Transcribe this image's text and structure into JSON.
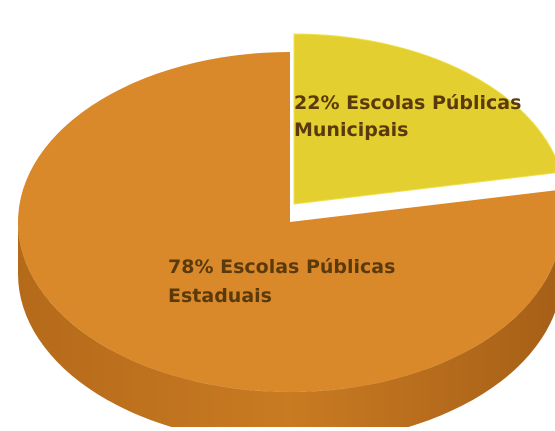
{
  "chart_data": {
    "type": "pie",
    "slices": [
      {
        "name": "Escolas Públicas Municipais",
        "value": 22,
        "label_line1": "22% Escolas Públicas",
        "label_line2": "Municipais",
        "color": "#e3cf2f",
        "side_color": "#b9a623"
      },
      {
        "name": "Escolas Públicas Estaduais",
        "value": 78,
        "label_line1": "78% Escolas Públicas",
        "label_line2": "Estaduais",
        "color": "#d9892a",
        "side_color": "#b06b1c"
      }
    ]
  }
}
